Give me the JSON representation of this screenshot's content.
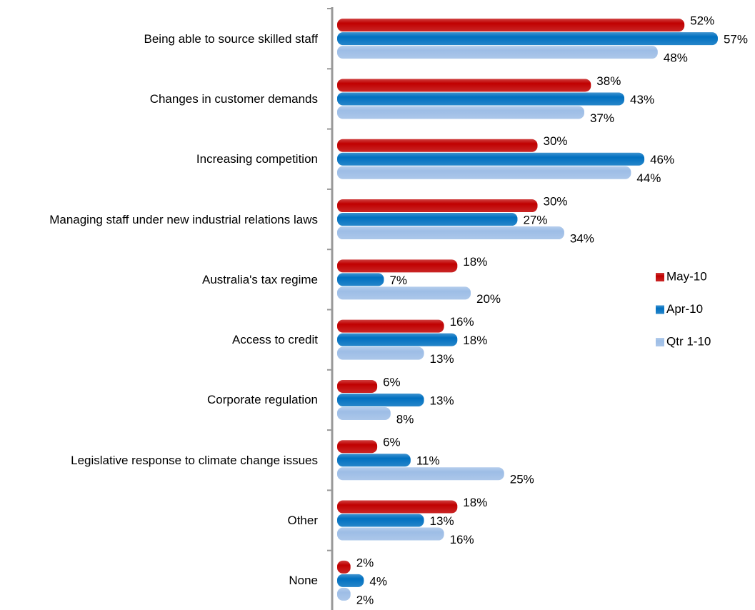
{
  "chart_data": {
    "type": "bar",
    "orientation": "horizontal",
    "categories": [
      "Being able to source skilled staff",
      "Changes in customer demands",
      "Increasing competition",
      "Managing staff under new industrial relations laws",
      "Australia's tax regime",
      "Access to credit",
      "Corporate regulation",
      "Legislative response to climate change issues",
      "Other",
      "None"
    ],
    "series": [
      {
        "name": "May-10",
        "color": "#c00000",
        "values": [
          52,
          38,
          30,
          30,
          18,
          16,
          6,
          6,
          18,
          2
        ],
        "value_labels": [
          "52%",
          "38%",
          "30%",
          "30%",
          "18%",
          "16%",
          "6%",
          "6%",
          "18%",
          "2%"
        ]
      },
      {
        "name": "Apr-10",
        "color": "#0070c0",
        "values": [
          57,
          43,
          46,
          27,
          7,
          18,
          13,
          11,
          13,
          4
        ],
        "value_labels": [
          "57%",
          "43%",
          "46%",
          "27%",
          "7%",
          "18%",
          "13%",
          "11%",
          "13%",
          "4%"
        ]
      },
      {
        "name": "Qtr 1-10",
        "color": "#9dbde6",
        "values": [
          48,
          37,
          44,
          34,
          20,
          13,
          8,
          25,
          16,
          2
        ],
        "value_labels": [
          "48%",
          "37%",
          "44%",
          "34%",
          "20%",
          "13%",
          "8%",
          "25%",
          "16%",
          "2%"
        ]
      }
    ],
    "xlim": [
      0,
      60
    ],
    "legend": "right"
  }
}
